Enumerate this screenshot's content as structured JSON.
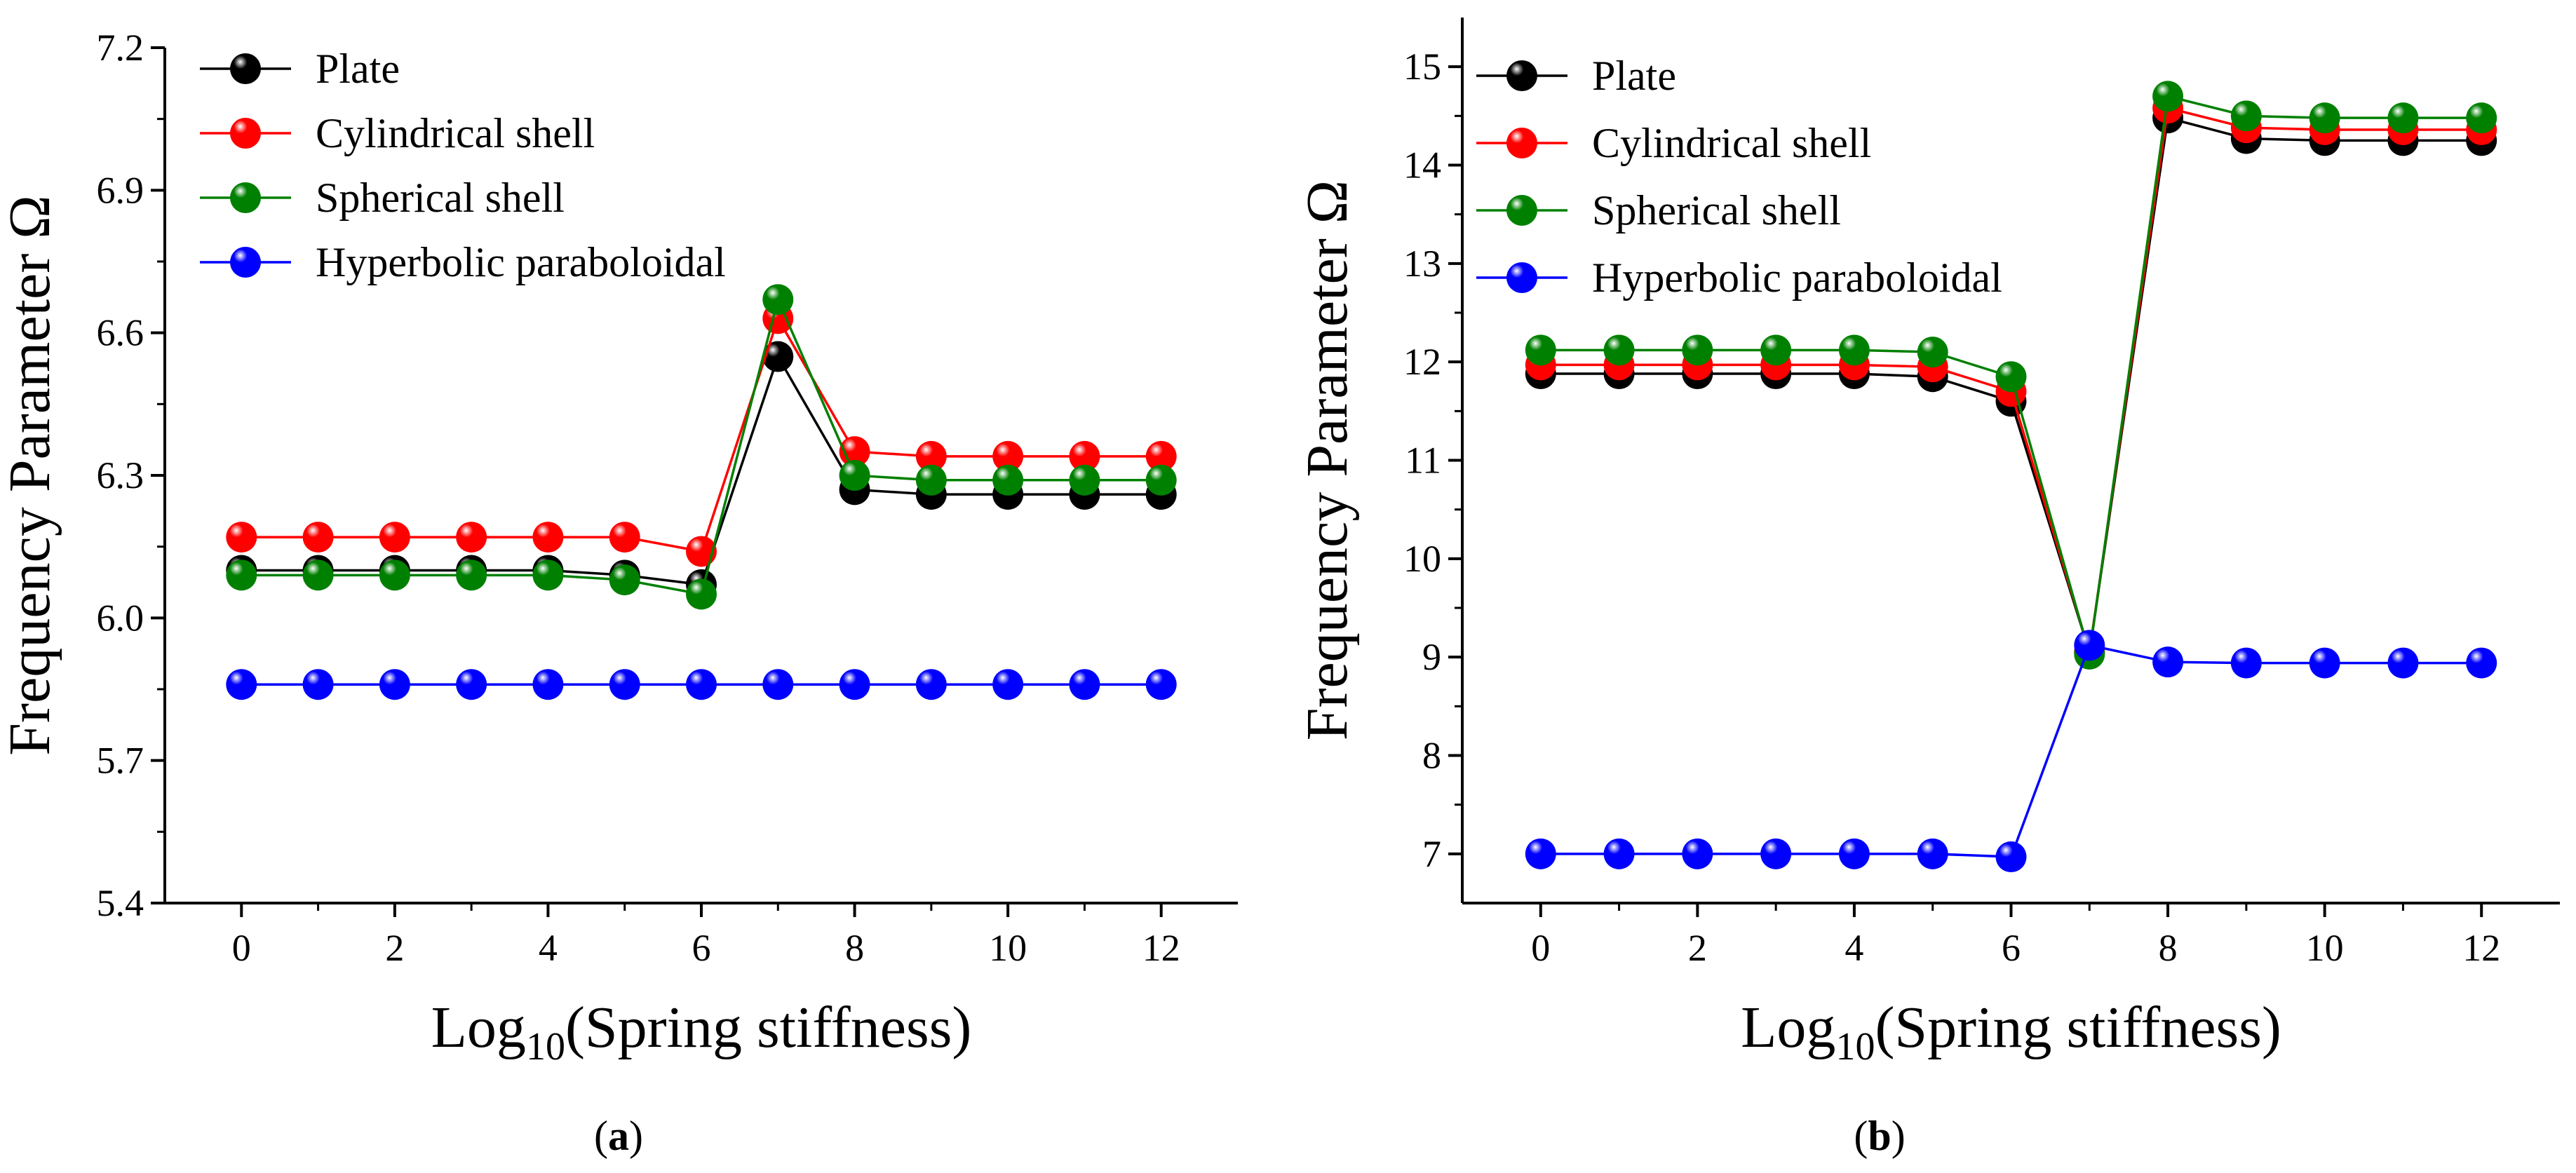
{
  "chart_data": [
    {
      "type": "line",
      "panel_label": "(a)",
      "caption": {
        "open": "(",
        "letter": "a",
        "close": ")"
      },
      "xlabel": {
        "prefix": "Log",
        "sub": "10",
        "suffix": "(Spring stiffness)"
      },
      "ylabel": "Frequency Parameter Ω",
      "xlim": [
        -1,
        13
      ],
      "ylim": [
        5.4,
        7.2
      ],
      "xticks": [
        0,
        2,
        4,
        6,
        8,
        10,
        12
      ],
      "yticks": [
        5.4,
        5.7,
        6.0,
        6.3,
        6.6,
        6.9,
        7.2
      ],
      "ytick_labels": [
        "5.4",
        "5.7",
        "6.0",
        "6.3",
        "6.6",
        "6.9",
        "7.2"
      ],
      "x": [
        0,
        1,
        2,
        3,
        4,
        5,
        6,
        7,
        8,
        9,
        10,
        11,
        12
      ],
      "series": [
        {
          "name": "Plate",
          "color": "#000000",
          "values": [
            6.1,
            6.1,
            6.1,
            6.1,
            6.1,
            6.09,
            6.07,
            6.55,
            6.27,
            6.26,
            6.26,
            6.26,
            6.26
          ]
        },
        {
          "name": "Cylindrical shell",
          "color": "#ff0000",
          "values": [
            6.17,
            6.17,
            6.17,
            6.17,
            6.17,
            6.17,
            6.14,
            6.63,
            6.35,
            6.34,
            6.34,
            6.34,
            6.34
          ]
        },
        {
          "name": "Spherical shell",
          "color": "#008000",
          "values": [
            6.09,
            6.09,
            6.09,
            6.09,
            6.09,
            6.08,
            6.05,
            6.67,
            6.3,
            6.29,
            6.29,
            6.29,
            6.29
          ]
        },
        {
          "name": "Hyperbolic paraboloidal",
          "color": "#0000ff",
          "values": [
            5.86,
            5.86,
            5.86,
            5.86,
            5.86,
            5.86,
            5.86,
            5.86,
            5.86,
            5.86,
            5.86,
            5.86,
            5.86
          ]
        }
      ]
    },
    {
      "type": "line",
      "panel_label": "(b)",
      "caption": {
        "open": "(",
        "letter": "b",
        "close": ")"
      },
      "xlabel": {
        "prefix": "Log",
        "sub": "10",
        "suffix": "(Spring stiffness)"
      },
      "ylabel": "Frequency Parameter Ω",
      "xlim": [
        -1,
        13
      ],
      "ylim": [
        6.5,
        15.5
      ],
      "xticks": [
        0,
        2,
        4,
        6,
        8,
        10,
        12
      ],
      "yticks": [
        7,
        8,
        9,
        10,
        11,
        12,
        13,
        14,
        15
      ],
      "ytick_labels": [
        "7",
        "8",
        "9",
        "10",
        "11",
        "12",
        "13",
        "14",
        "15"
      ],
      "x": [
        0,
        1,
        2,
        3,
        4,
        5,
        6,
        7,
        8,
        9,
        10,
        11,
        12
      ],
      "series": [
        {
          "name": "Plate",
          "color": "#000000",
          "values": [
            11.88,
            11.88,
            11.88,
            11.88,
            11.88,
            11.85,
            11.6,
            9.05,
            14.48,
            14.27,
            14.25,
            14.25,
            14.25
          ]
        },
        {
          "name": "Cylindrical shell",
          "color": "#ff0000",
          "values": [
            11.97,
            11.97,
            11.97,
            11.97,
            11.97,
            11.95,
            11.7,
            9.05,
            14.58,
            14.38,
            14.36,
            14.36,
            14.36
          ]
        },
        {
          "name": "Spherical shell",
          "color": "#008000",
          "values": [
            12.12,
            12.12,
            12.12,
            12.12,
            12.12,
            12.1,
            11.85,
            9.03,
            14.7,
            14.5,
            14.48,
            14.48,
            14.48
          ]
        },
        {
          "name": "Hyperbolic paraboloidal",
          "color": "#0000ff",
          "values": [
            7.0,
            7.0,
            7.0,
            7.0,
            7.0,
            7.0,
            6.97,
            9.12,
            8.95,
            8.94,
            8.94,
            8.94,
            8.94
          ]
        }
      ]
    }
  ]
}
